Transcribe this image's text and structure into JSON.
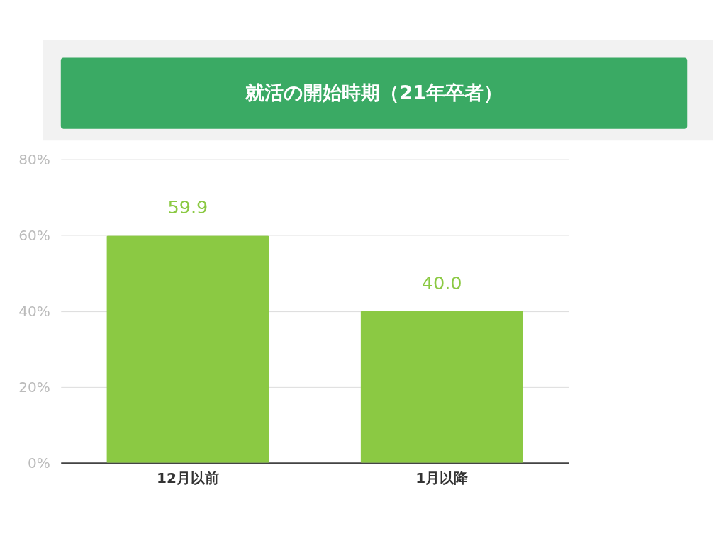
{
  "chart_data": {
    "type": "bar",
    "title": "就活の開始時期（21年卒者）",
    "categories": [
      "12月以前",
      "1月以降"
    ],
    "values": [
      59.9,
      40.0
    ],
    "value_labels": [
      "59.9",
      "40.0"
    ],
    "color": "#8bc943",
    "ylim": [
      0,
      80
    ],
    "yticks": [
      {
        "value": 0,
        "label": "0%"
      },
      {
        "value": 20,
        "label": "20%"
      },
      {
        "value": 40,
        "label": "40%"
      },
      {
        "value": 60,
        "label": "60%"
      },
      {
        "value": 80,
        "label": "80%"
      }
    ],
    "grid": "y"
  }
}
